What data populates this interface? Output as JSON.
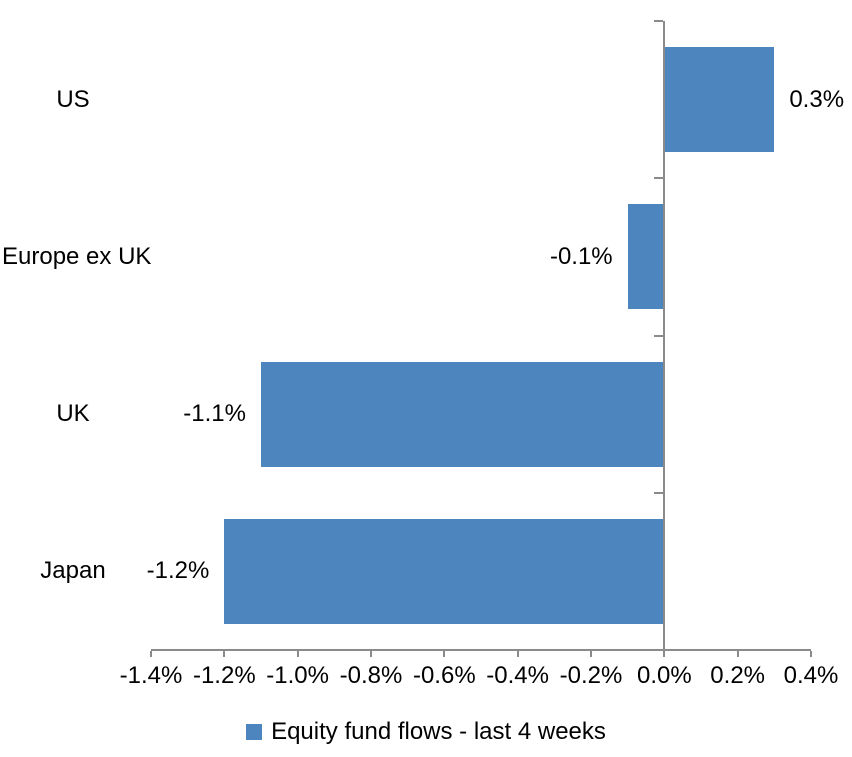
{
  "chart_data": {
    "type": "bar",
    "orientation": "horizontal",
    "title": "",
    "categories": [
      "US",
      "Europe ex UK",
      "UK",
      "Japan"
    ],
    "values": [
      0.3,
      -0.1,
      -1.1,
      -1.2
    ],
    "value_labels": [
      "0.3%",
      "-0.1%",
      "-1.1%",
      "-1.2%"
    ],
    "series_name": "Equity fund flows - last 4 weeks",
    "xlim": [
      -1.4,
      0.4
    ],
    "x_ticks": [
      {
        "value": -1.4,
        "label": "-1.4%"
      },
      {
        "value": -1.2,
        "label": "-1.2%"
      },
      {
        "value": -1.0,
        "label": "-1.0%"
      },
      {
        "value": -0.8,
        "label": "-0.8%"
      },
      {
        "value": -0.6,
        "label": "-0.6%"
      },
      {
        "value": -0.4,
        "label": "-0.4%"
      },
      {
        "value": -0.2,
        "label": "-0.2%"
      },
      {
        "value": 0.0,
        "label": "0.0%"
      },
      {
        "value": 0.2,
        "label": "0.2%"
      },
      {
        "value": 0.4,
        "label": "0.4%"
      }
    ],
    "grid": false,
    "legend_position": "bottom",
    "colors": {
      "bar": "#4d86bf",
      "axis": "#8a8a8a",
      "text": "#000000",
      "background": "#ffffff"
    }
  }
}
